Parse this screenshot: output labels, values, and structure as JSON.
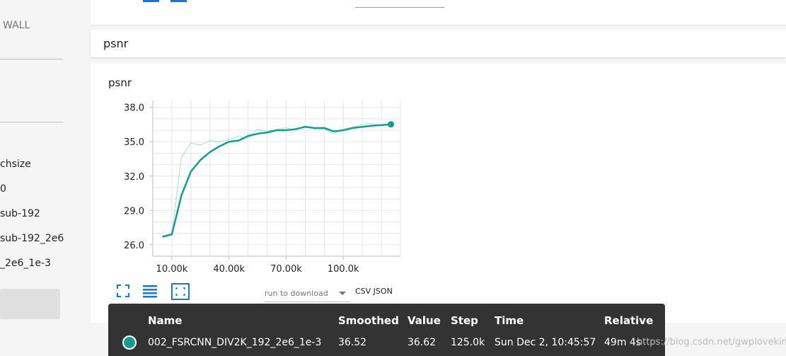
{
  "sidebar": {
    "wall": "WALL",
    "items": [
      "chsize",
      "0",
      "sub-192",
      "sub-192_2e6",
      "_2e6_1e-3"
    ]
  },
  "top": {
    "colors": {
      "accent": "#1976d2"
    }
  },
  "group": {
    "title": "psnr"
  },
  "chart": {
    "title": "psnr",
    "run_to_download": "run to download",
    "download_links": "CSV JSON",
    "icons": [
      "fit-domain-icon",
      "toggle-log-scale-icon",
      "expand-chart-icon"
    ]
  },
  "chart_data": {
    "type": "line",
    "title": "psnr",
    "xlabel": "",
    "ylabel": "",
    "xlim": [
      0,
      130000
    ],
    "ylim": [
      25.0,
      38.6
    ],
    "x_ticks": [
      10000,
      40000,
      70000,
      100000
    ],
    "x_tick_labels": [
      "10.00k",
      "40.00k",
      "70.00k",
      "100.0k"
    ],
    "y_ticks": [
      26.0,
      29.0,
      32.0,
      35.0,
      38.0
    ],
    "y_tick_labels": [
      "26.0",
      "29.0",
      "32.0",
      "35.0",
      "38.0"
    ],
    "grid": true,
    "series": [
      {
        "name": "002_FSRCNN_DIV2K_192_2e6_1e-3",
        "role": "raw",
        "color": "#129e8c",
        "x": [
          5000,
          10000,
          15000,
          20000,
          25000,
          30000,
          35000,
          40000,
          45000,
          50000,
          55000,
          60000,
          65000,
          70000,
          75000,
          80000,
          85000,
          90000,
          95000,
          100000,
          105000,
          110000,
          115000,
          120000,
          125000
        ],
        "y": [
          26.7,
          27.0,
          33.6,
          34.9,
          34.7,
          35.1,
          35.0,
          35.2,
          35.5,
          35.3,
          36.1,
          35.9,
          36.1,
          36.2,
          36.0,
          36.4,
          36.1,
          36.1,
          35.7,
          36.1,
          36.3,
          36.5,
          36.6,
          36.4,
          36.62
        ]
      },
      {
        "name": "002_FSRCNN_DIV2K_192_2e6_1e-3",
        "role": "smoothed",
        "color": "#129e8c",
        "x": [
          5000,
          10000,
          15000,
          20000,
          25000,
          30000,
          35000,
          40000,
          45000,
          50000,
          55000,
          60000,
          65000,
          70000,
          75000,
          80000,
          85000,
          90000,
          95000,
          100000,
          105000,
          110000,
          115000,
          120000,
          125000
        ],
        "y": [
          26.7,
          26.9,
          30.3,
          32.4,
          33.4,
          34.1,
          34.6,
          35.0,
          35.1,
          35.5,
          35.7,
          35.8,
          36.0,
          36.0,
          36.1,
          36.3,
          36.2,
          36.2,
          35.9,
          36.0,
          36.2,
          36.3,
          36.4,
          36.45,
          36.52
        ]
      }
    ]
  },
  "tooltip": {
    "headers": {
      "name": "Name",
      "smoothed": "Smoothed",
      "value": "Value",
      "step": "Step",
      "time": "Time",
      "relative": "Relative"
    },
    "row": {
      "name": "002_FSRCNN_DIV2K_192_2e6_1e-3",
      "smoothed": "36.52",
      "value": "36.62",
      "step": "125.0k",
      "time": "Sun Dec 2, 10:45:57",
      "relative": "49m 4s"
    }
  },
  "watermark": "https://blog.csdn.net/gwplovekimi"
}
